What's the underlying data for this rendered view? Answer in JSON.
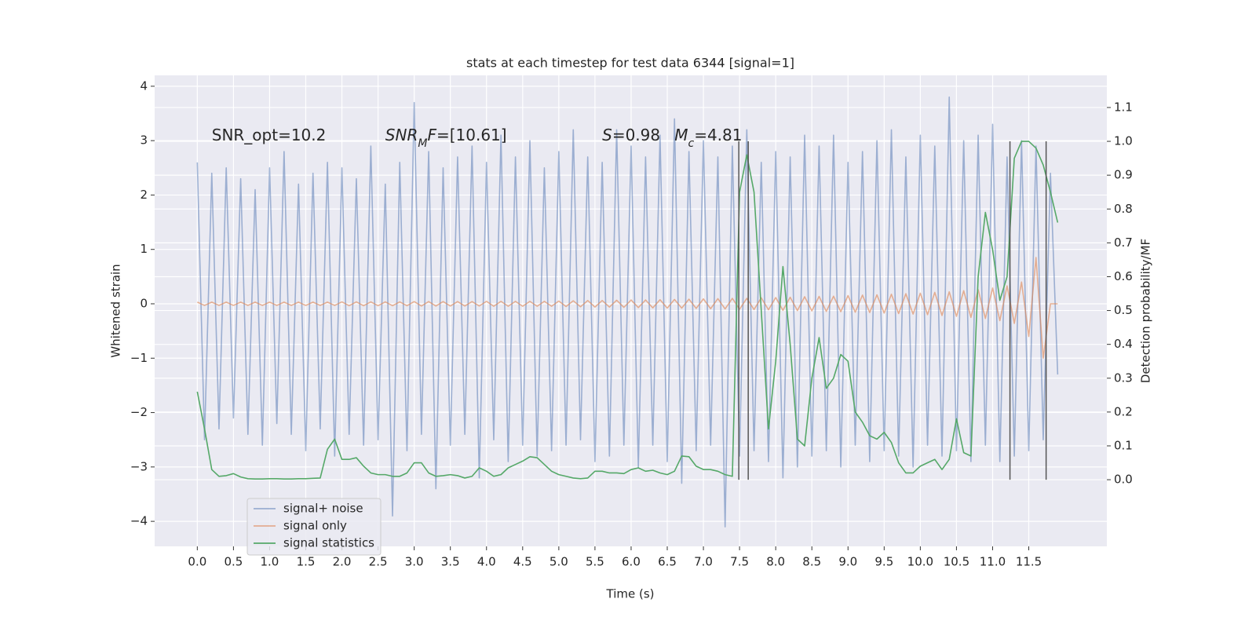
{
  "chart_data": {
    "type": "line",
    "title": "stats at each timestep for test data 6344 [signal=1]",
    "xlabel": "Time (s)",
    "ylabel": "Whitened strain",
    "y2label": "Detection probability/MF",
    "xlim": [
      -0.59,
      12.58
    ],
    "ylim": [
      -4.46,
      4.2
    ],
    "y2lim": [
      -0.197,
      1.195
    ],
    "xticks": [
      {
        "value": 0,
        "label": "0.0"
      },
      0.5,
      {
        "value": 1,
        "label": "1.0"
      },
      1.5,
      {
        "value": 2,
        "label": "2.0"
      },
      2.5,
      {
        "value": 3,
        "label": "3.0"
      },
      3.5,
      {
        "value": 4,
        "label": "4.0"
      },
      4.5,
      {
        "value": 5,
        "label": "5.0"
      },
      5.5,
      {
        "value": 6,
        "label": "6.0"
      },
      6.5,
      {
        "value": 7,
        "label": "7.0"
      },
      7.5,
      {
        "value": 8,
        "label": "8.0"
      },
      8.5,
      {
        "value": 9,
        "label": "9.0"
      },
      9.5,
      {
        "value": 10,
        "label": "10.0"
      },
      10.5,
      {
        "value": 11,
        "label": "11.0"
      },
      11.5
    ],
    "yticks": [
      {
        "value": -4,
        "label": "−4"
      },
      {
        "value": -3,
        "label": "−3"
      },
      {
        "value": -2,
        "label": "−2"
      },
      {
        "value": -1,
        "label": "−1"
      },
      0,
      1,
      2,
      3,
      4
    ],
    "y2ticks": [
      {
        "value": 0,
        "label": "0.0"
      },
      0.1,
      0.2,
      0.3,
      0.4,
      0.5,
      0.6,
      0.7,
      0.8,
      0.9,
      {
        "value": 1,
        "label": "1.0"
      },
      1.1
    ],
    "grid": true,
    "legend": "lower left",
    "x": [
      0,
      0.1,
      0.2,
      0.3,
      0.4,
      0.5,
      0.6,
      0.7,
      0.8,
      0.9,
      1,
      1.1,
      1.2,
      1.3,
      1.4,
      1.5,
      1.6,
      1.7,
      1.8,
      1.9,
      2,
      2.1,
      2.2,
      2.3,
      2.4,
      2.5,
      2.6,
      2.7,
      2.8,
      2.9,
      3,
      3.1,
      3.2,
      3.3,
      3.4,
      3.5,
      3.6,
      3.7,
      3.8,
      3.9,
      4,
      4.1,
      4.2,
      4.3,
      4.4,
      4.5,
      4.6,
      4.7,
      4.8,
      4.9,
      5,
      5.1,
      5.2,
      5.3,
      5.4,
      5.5,
      5.6,
      5.7,
      5.8,
      5.9,
      6,
      6.1,
      6.2,
      6.3,
      6.4,
      6.5,
      6.6,
      6.7,
      6.8,
      6.9,
      7,
      7.1,
      7.2,
      7.3,
      7.4,
      7.5,
      7.6,
      7.7,
      7.8,
      7.9,
      8,
      8.1,
      8.2,
      8.3,
      8.4,
      8.5,
      8.6,
      8.7,
      8.8,
      8.9,
      9,
      9.1,
      9.2,
      9.3,
      9.4,
      9.5,
      9.6,
      9.7,
      9.8,
      9.9,
      10,
      10.1,
      10.2,
      10.3,
      10.4,
      10.5,
      10.6,
      10.7,
      10.8,
      10.9,
      11,
      11.1,
      11.2,
      11.3,
      11.4,
      11.5,
      11.6,
      11.7,
      11.8,
      11.9
    ],
    "series": [
      {
        "name": "signal+ noise",
        "color": "#4c72b0",
        "opacity": 0.5,
        "values": [
          2.6,
          -2.5,
          2.4,
          -2.3,
          2.5,
          -2.1,
          2.3,
          -2.4,
          2.1,
          -2.6,
          2.5,
          -2.2,
          2.8,
          -2.4,
          2.2,
          -2.7,
          2.4,
          -2.3,
          2.6,
          -2.8,
          2.5,
          -2.4,
          2.3,
          -2.6,
          2.9,
          -2.5,
          2.2,
          -3.9,
          2.6,
          -2.7,
          3.7,
          -2.4,
          2.8,
          -3.4,
          2.5,
          -2.6,
          2.7,
          -2.4,
          2.9,
          -3.2,
          2.6,
          -2.5,
          3.1,
          -2.9,
          2.7,
          -2.6,
          3.0,
          -2.8,
          2.5,
          -2.7,
          2.8,
          -2.6,
          3.2,
          -2.5,
          2.7,
          -2.9,
          2.6,
          -2.8,
          3.2,
          -2.6,
          2.9,
          -3.0,
          2.7,
          -2.6,
          3.1,
          -2.9,
          3.4,
          -3.3,
          2.8,
          -2.7,
          3.0,
          -2.6,
          2.7,
          -4.1,
          2.9,
          -2.8,
          3.2,
          -2.7,
          2.6,
          -2.9,
          2.8,
          -3.2,
          2.7,
          -3.0,
          3.1,
          -2.8,
          2.9,
          -2.7,
          3.1,
          -3.0,
          2.6,
          -2.6,
          2.8,
          -2.9,
          3.0,
          -2.7,
          3.2,
          -2.8,
          2.7,
          -3.0,
          3.1,
          -2.6,
          2.9,
          -2.8,
          3.8,
          -2.7,
          3.0,
          -2.9,
          3.1,
          -2.6,
          3.3,
          -2.9,
          2.7,
          -2.8,
          3.0,
          -2.7,
          2.9,
          -2.5,
          2.4,
          -1.3
        ]
      },
      {
        "name": "signal only",
        "color": "#dd8452",
        "opacity": 0.6,
        "values": [
          0.03,
          -0.03,
          0.03,
          -0.03,
          0.03,
          -0.03,
          0.03,
          -0.03,
          0.03,
          -0.03,
          0.03,
          -0.03,
          0.03,
          -0.03,
          0.03,
          -0.03,
          0.03,
          -0.03,
          0.03,
          -0.03,
          0.035,
          -0.035,
          0.035,
          -0.035,
          0.035,
          -0.035,
          0.035,
          -0.035,
          0.035,
          -0.035,
          0.04,
          -0.04,
          0.04,
          -0.04,
          0.04,
          -0.04,
          0.04,
          -0.04,
          0.04,
          -0.04,
          0.045,
          -0.045,
          0.045,
          -0.045,
          0.045,
          -0.045,
          0.045,
          -0.045,
          0.045,
          -0.045,
          0.05,
          -0.05,
          0.055,
          -0.055,
          0.06,
          -0.06,
          0.06,
          -0.06,
          0.065,
          -0.065,
          0.07,
          -0.07,
          0.07,
          -0.075,
          0.075,
          -0.08,
          0.08,
          -0.08,
          0.085,
          -0.085,
          0.09,
          -0.09,
          0.095,
          -0.095,
          0.1,
          -0.1,
          0.1,
          -0.105,
          0.11,
          -0.11,
          0.115,
          -0.12,
          0.12,
          -0.125,
          0.13,
          -0.13,
          0.135,
          -0.14,
          0.14,
          -0.145,
          0.15,
          -0.155,
          0.16,
          -0.16,
          0.165,
          -0.17,
          0.175,
          -0.18,
          0.185,
          -0.19,
          0.195,
          -0.2,
          0.21,
          -0.215,
          0.22,
          -0.23,
          0.24,
          -0.25,
          0.26,
          -0.27,
          0.29,
          -0.31,
          0.33,
          -0.36,
          0.4,
          -0.6,
          0.85,
          -1.0,
          0,
          0
        ]
      },
      {
        "name": "signal statistics",
        "color": "#55a868",
        "opacity": 1,
        "axis": "y2",
        "values": [
          0.26,
          0.15,
          0.03,
          0.01,
          0.012,
          0.018,
          0.008,
          0.003,
          0.002,
          0.002,
          0.003,
          0.003,
          0.002,
          0.002,
          0.003,
          0.003,
          0.004,
          0.005,
          0.09,
          0.12,
          0.06,
          0.06,
          0.065,
          0.04,
          0.02,
          0.015,
          0.015,
          0.01,
          0.01,
          0.02,
          0.05,
          0.05,
          0.02,
          0.01,
          0.012,
          0.015,
          0.012,
          0.005,
          0.01,
          0.035,
          0.025,
          0.01,
          0.015,
          0.035,
          0.045,
          0.055,
          0.068,
          0.065,
          0.045,
          0.025,
          0.015,
          0.01,
          0.005,
          0.003,
          0.005,
          0.025,
          0.025,
          0.02,
          0.02,
          0.018,
          0.03,
          0.035,
          0.025,
          0.028,
          0.02,
          0.015,
          0.025,
          0.07,
          0.068,
          0.04,
          0.03,
          0.03,
          0.025,
          0.015,
          0.01,
          0.85,
          0.96,
          0.85,
          0.5,
          0.15,
          0.35,
          0.63,
          0.4,
          0.12,
          0.1,
          0.3,
          0.42,
          0.27,
          0.3,
          0.37,
          0.35,
          0.2,
          0.17,
          0.13,
          0.12,
          0.14,
          0.11,
          0.05,
          0.02,
          0.02,
          0.04,
          0.05,
          0.06,
          0.03,
          0.06,
          0.18,
          0.08,
          0.07,
          0.6,
          0.79,
          0.68,
          0.53,
          0.6,
          0.95,
          1.0,
          1.0,
          0.98,
          0.93,
          0.85,
          0.76
        ]
      }
    ],
    "vlines": {
      "x": [
        7.49,
        7.62,
        11.24,
        11.74
      ],
      "ymin": 0,
      "ymax": 1.0,
      "color": "#555555",
      "axis": "y2"
    },
    "annotations": [
      {
        "x": 0.2,
        "y": 3.0,
        "parts": [
          {
            "text": "SNR_opt=10.2"
          }
        ]
      },
      {
        "x": 2.6,
        "y": 3.0,
        "parts": [
          {
            "text": "SNR",
            "italic": true
          },
          {
            "text": "M",
            "italic": true,
            "sub": true
          },
          {
            "text": "F",
            "italic": true
          },
          {
            "text": "=[10.61]"
          }
        ]
      },
      {
        "x": 5.6,
        "y": 3.0,
        "parts": [
          {
            "text": "S",
            "italic": true
          },
          {
            "text": "=0.98"
          }
        ]
      },
      {
        "x": 6.6,
        "y": 3.0,
        "parts": [
          {
            "text": "M",
            "italic": true
          },
          {
            "text": "c",
            "italic": true,
            "sub": true
          },
          {
            "text": "=4.81"
          }
        ]
      }
    ]
  }
}
